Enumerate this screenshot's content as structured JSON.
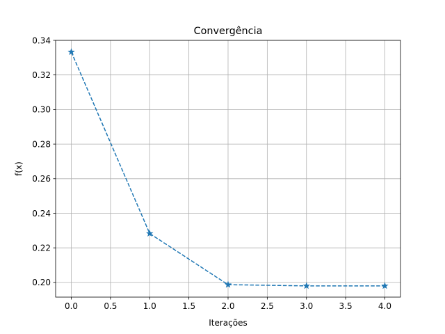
{
  "chart_data": {
    "type": "line",
    "title": "Convergência",
    "xlabel": "Iterações",
    "ylabel": "f(x)",
    "xlim": [
      -0.2,
      4.2
    ],
    "ylim": [
      0.1915,
      0.34
    ],
    "xticks": [
      0.0,
      0.5,
      1.0,
      1.5,
      2.0,
      2.5,
      3.0,
      3.5,
      4.0
    ],
    "xtick_labels": [
      "0.0",
      "0.5",
      "1.0",
      "1.5",
      "2.0",
      "2.5",
      "3.0",
      "3.5",
      "4.0"
    ],
    "yticks": [
      0.2,
      0.22,
      0.24,
      0.26,
      0.28,
      0.3,
      0.32,
      0.34
    ],
    "ytick_labels": [
      "0.20",
      "0.22",
      "0.24",
      "0.26",
      "0.28",
      "0.30",
      "0.32",
      "0.34"
    ],
    "grid": true,
    "series": [
      {
        "x": [
          0,
          1,
          2,
          3,
          4
        ],
        "y": [
          0.3333,
          0.2283,
          0.1987,
          0.198,
          0.198
        ],
        "color": "#1f77b4",
        "linestyle": "dashed",
        "marker": "star"
      }
    ]
  }
}
